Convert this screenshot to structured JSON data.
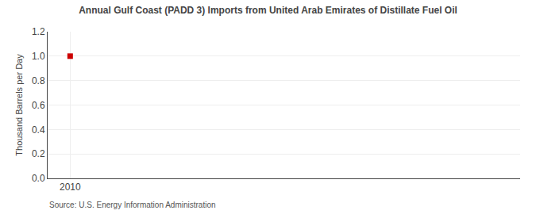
{
  "chart_data": {
    "type": "scatter",
    "title": "Annual Gulf Coast (PADD 3) Imports from United Arab Emirates of Distillate Fuel Oil",
    "ylabel": "Thousand Barrels per Day",
    "source": "Source: U.S. Energy Information Administration",
    "x": [
      2010
    ],
    "values": [
      1.0
    ],
    "color": "#cc0000",
    "marker": "square",
    "xlim": [
      2009.4,
      2022.0
    ],
    "ylim": [
      0.0,
      1.2
    ],
    "xticks": [
      2010
    ],
    "yticks": [
      {
        "value": 0.0,
        "label": "0.0"
      },
      0.2,
      0.4,
      0.6,
      0.8,
      {
        "value": 1.0,
        "label": "1.0"
      },
      1.2
    ],
    "grid": true
  }
}
